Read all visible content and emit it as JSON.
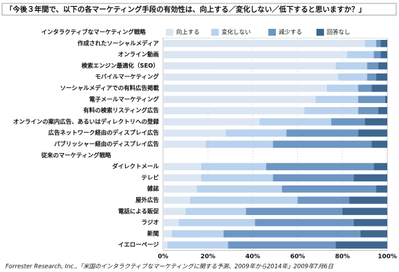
{
  "chart_data": {
    "type": "stacked-bar-horizontal",
    "title": "「今後３年間で、以下の各マーケティング手段の有効性は、向上する／変化しない／低下すると思いますか？」",
    "source": "Forrester Research, Inc.,「米国のインタラクティブなマーケティングに関する予測、2009年から2014年」2009年7月6日",
    "categories": [
      "インタラクティブなマーケティング戦略",
      "作成されたソーシャルメディア",
      "オンライン動画",
      "検索エンジン最適化（SEO）",
      "モバイルマーケティング",
      "ソーシャルメディアでの有料広告掲載",
      "電子メールマーケティング",
      "有料の検索リスティング広告",
      "オンラインの案内広告、あるいはディレクトリへの登録",
      "広告ネットワーク経由のディスプレイ広告",
      "パブリッシャー経由のディスプレイ広告",
      "従来のマーケティング戦略",
      "ダイレクトメール",
      "テレビ",
      "雑誌",
      "屋外広告",
      "電話による販促",
      "ラジオ",
      "新聞",
      "イエローページ"
    ],
    "series": [
      {
        "name": "向上する",
        "color": "#dce6f2",
        "values": [
          null,
          90,
          82,
          77,
          78,
          73,
          68,
          63,
          43,
          28,
          19,
          null,
          17,
          17,
          15,
          12,
          10,
          7,
          4,
          2
        ]
      },
      {
        "name": "変化しない",
        "color": "#b9d2ee",
        "values": [
          null,
          5,
          12,
          14,
          13,
          14,
          19,
          24,
          32,
          27,
          30,
          null,
          29,
          32,
          38,
          48,
          27,
          34,
          23,
          27
        ]
      },
      {
        "name": "減少する",
        "color": "#6d96c3",
        "values": [
          null,
          2,
          3,
          5,
          4,
          6,
          12,
          9,
          15,
          32,
          44,
          null,
          48,
          36,
          42,
          23,
          43,
          44,
          61,
          48
        ]
      },
      {
        "name": "回答なし",
        "color": "#3e6790",
        "values": [
          null,
          3,
          3,
          4,
          5,
          7,
          1,
          4,
          10,
          13,
          7,
          null,
          6,
          15,
          5,
          17,
          20,
          15,
          12,
          23
        ]
      }
    ],
    "xlim": [
      0,
      100
    ],
    "xticks": [
      {
        "value": 0,
        "label": "0%"
      },
      {
        "value": 20,
        "label": "20%"
      },
      {
        "value": 40,
        "label": "40%"
      },
      {
        "value": 60,
        "label": "60%"
      },
      {
        "value": 80,
        "label": "80%"
      },
      {
        "value": 100,
        "label": "100%"
      }
    ],
    "grid": true
  }
}
